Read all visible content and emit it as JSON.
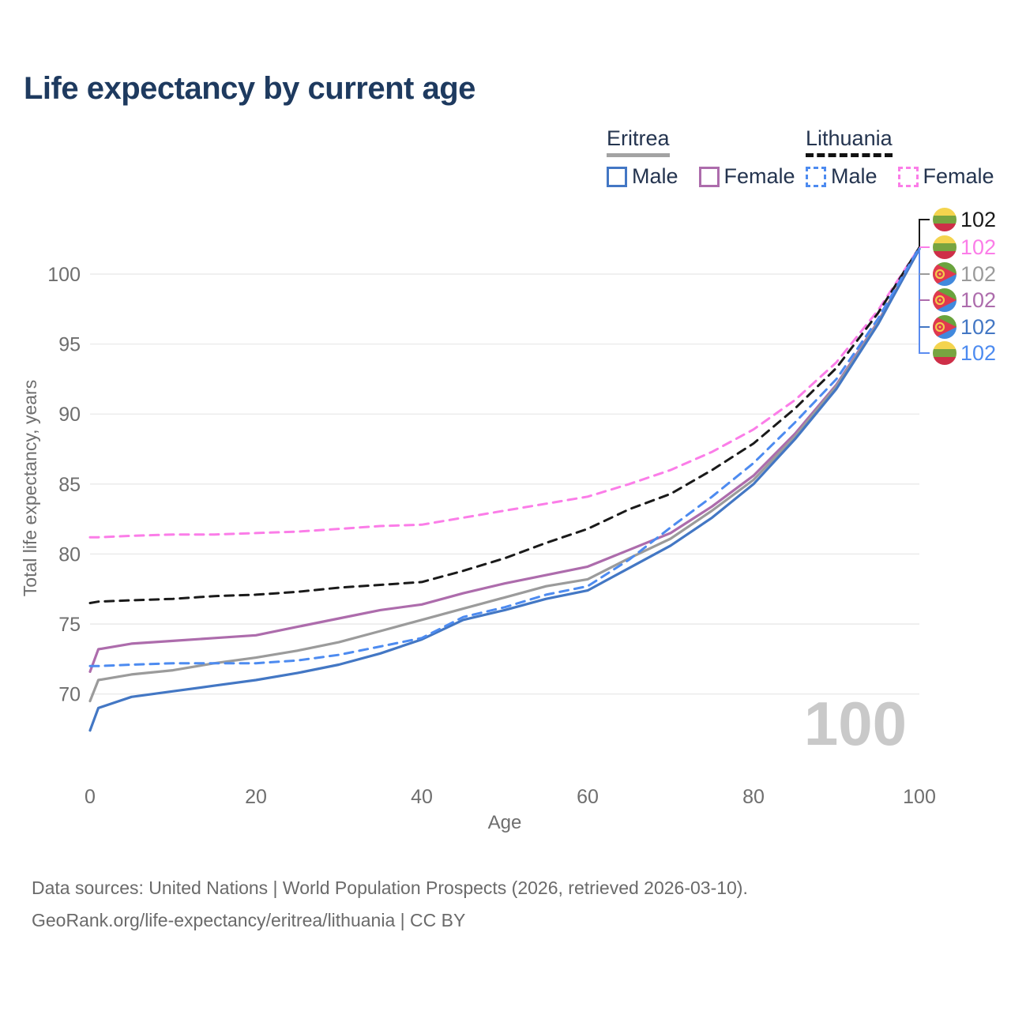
{
  "title": "Life expectancy by current age",
  "watermark_age": "100",
  "palette": {
    "title_color": "#1E3A5F",
    "navy_text": "#24344F",
    "axis_text": "#6E6E6E",
    "grid_color": "#ECECEC",
    "watermark_color": "#C9C9C9",
    "muted_text": "#6A6A6A",
    "connector_blue": "#5B8CF0"
  },
  "legend": {
    "groups": [
      {
        "label": "Eritrea",
        "underline_style": "solid",
        "underline_color": "#A3A3A3",
        "items": [
          {
            "label": "Male",
            "style": "solid",
            "color": "#4377C4"
          },
          {
            "label": "Female",
            "style": "solid",
            "color": "#AD6CAC"
          }
        ]
      },
      {
        "label": "Lithuania",
        "underline_style": "dashed",
        "underline_color": "#111111",
        "items": [
          {
            "label": "Male",
            "style": "dashed",
            "color": "#4D8BF0"
          },
          {
            "label": "Female",
            "style": "dashed",
            "color": "#FB7DE8"
          }
        ]
      }
    ]
  },
  "chart_data": {
    "type": "line",
    "title": "Life expectancy by current age",
    "xlabel": "Age",
    "ylabel": "Total life expectancy, years",
    "xlim": [
      0,
      100
    ],
    "ylim": [
      66,
      103
    ],
    "x_ticks": [
      0,
      20,
      40,
      60,
      80,
      100
    ],
    "y_ticks": [
      70,
      75,
      80,
      85,
      90,
      95,
      100
    ],
    "grid": "horizontal",
    "legend_position": "top-right",
    "x": [
      0,
      1,
      5,
      10,
      15,
      20,
      25,
      30,
      35,
      40,
      45,
      50,
      55,
      60,
      65,
      70,
      75,
      80,
      85,
      90,
      95,
      100
    ],
    "series": [
      {
        "name": "Lithuania Female",
        "country": "Lithuania",
        "sex": "Female",
        "color": "#FB7DE8",
        "dash": true,
        "values": [
          81.2,
          81.2,
          81.3,
          81.4,
          81.4,
          81.5,
          81.6,
          81.8,
          82.0,
          82.1,
          82.6,
          83.1,
          83.6,
          84.1,
          85.0,
          86.0,
          87.3,
          88.9,
          91.0,
          93.7,
          97.4,
          101.9
        ]
      },
      {
        "name": "Lithuania",
        "country": "Lithuania",
        "sex": "Both",
        "color": "#1A1A1A",
        "dash": true,
        "values": [
          76.5,
          76.6,
          76.7,
          76.8,
          77.0,
          77.1,
          77.3,
          77.6,
          77.8,
          78.0,
          78.8,
          79.7,
          80.8,
          81.8,
          83.2,
          84.3,
          86.0,
          87.9,
          90.4,
          93.3,
          97.2,
          101.9
        ]
      },
      {
        "name": "Eritrea Female",
        "country": "Eritrea",
        "sex": "Female",
        "color": "#AD6CAC",
        "dash": false,
        "values": [
          71.6,
          73.2,
          73.6,
          73.8,
          74.0,
          74.2,
          74.8,
          75.4,
          76.0,
          76.4,
          77.2,
          77.9,
          78.5,
          79.1,
          80.3,
          81.5,
          83.4,
          85.6,
          88.6,
          92.1,
          96.6,
          101.8
        ]
      },
      {
        "name": "Eritrea",
        "country": "Eritrea",
        "sex": "Both",
        "color": "#9B9B9B",
        "dash": false,
        "values": [
          69.5,
          71.0,
          71.4,
          71.7,
          72.2,
          72.6,
          73.1,
          73.7,
          74.5,
          75.3,
          76.1,
          76.9,
          77.7,
          78.2,
          79.7,
          81.1,
          83.1,
          85.3,
          88.4,
          92.0,
          96.5,
          101.8
        ]
      },
      {
        "name": "Eritrea Male",
        "country": "Eritrea",
        "sex": "Male",
        "color": "#4377C4",
        "dash": false,
        "values": [
          67.4,
          69.0,
          69.8,
          70.2,
          70.6,
          71.0,
          71.5,
          72.1,
          72.9,
          73.9,
          75.3,
          76.0,
          76.8,
          77.4,
          79.0,
          80.6,
          82.6,
          85.0,
          88.2,
          91.8,
          96.4,
          101.8
        ]
      },
      {
        "name": "Lithuania Male",
        "country": "Lithuania",
        "sex": "Male",
        "color": "#4D8BF0",
        "dash": true,
        "values": [
          72.0,
          72.0,
          72.1,
          72.2,
          72.2,
          72.2,
          72.4,
          72.8,
          73.4,
          74.0,
          75.5,
          76.2,
          77.1,
          77.7,
          79.6,
          81.9,
          84.1,
          86.5,
          89.4,
          92.5,
          96.8,
          101.9
        ]
      }
    ],
    "end_labels": [
      {
        "value": "102",
        "flag": "lithuania",
        "series": "Lithuania",
        "color": "#1A1A1A"
      },
      {
        "value": "102",
        "flag": "lithuania",
        "series": "Lithuania Female",
        "color": "#FB7DE8"
      },
      {
        "value": "102",
        "flag": "eritrea",
        "series": "Eritrea",
        "color": "#9B9B9B"
      },
      {
        "value": "102",
        "flag": "eritrea",
        "series": "Eritrea Female",
        "color": "#AD6CAC"
      },
      {
        "value": "102",
        "flag": "eritrea",
        "series": "Eritrea Male",
        "color": "#4377C4"
      },
      {
        "value": "102",
        "flag": "lithuania",
        "series": "Lithuania Male",
        "color": "#4D8BF0"
      }
    ],
    "flag_colors": {
      "lithuania": {
        "yellow": "#F4D44E",
        "green": "#77A440",
        "red": "#CE2F48"
      },
      "eritrea": {
        "green": "#69A33D",
        "blue": "#4189DD",
        "red": "#E0384E",
        "emblem": "#F4C94C"
      }
    }
  },
  "footer": {
    "line1": "Data sources: United Nations | World Population Prospects (2026, retrieved 2026-03-10).",
    "line2": "GeoRank.org/life-expectancy/eritrea/lithuania | CC BY"
  }
}
